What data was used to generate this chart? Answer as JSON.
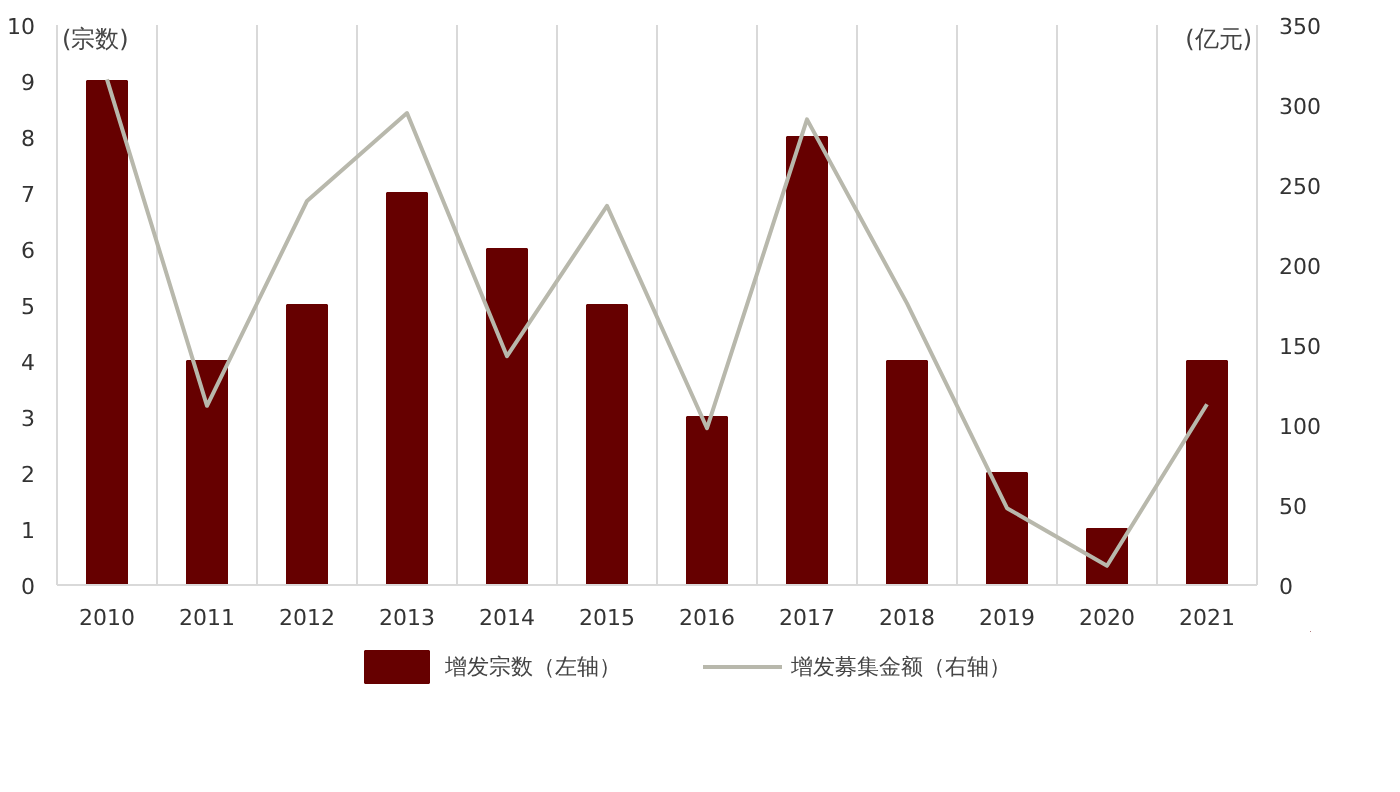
{
  "chart_data": {
    "type": "bar",
    "categories": [
      "2010",
      "2011",
      "2012",
      "2013",
      "2014",
      "2015",
      "2016",
      "2017",
      "2018",
      "2019",
      "2020",
      "2021"
    ],
    "series": [
      {
        "name": "增发宗数（左轴）",
        "color": "#660000",
        "values": [
          9,
          4,
          5,
          7,
          6,
          5,
          3,
          8,
          4,
          2,
          1,
          4
        ]
      },
      {
        "name": "增发募集金额（右轴）",
        "type": "line",
        "axis": "y2",
        "color": "#b8b8ac",
        "values": [
          316,
          112,
          240,
          295,
          143,
          237,
          98,
          291,
          176,
          48,
          12,
          113
        ]
      }
    ],
    "ylabel": "(宗数)",
    "y2label": "(亿元)",
    "ylim": [
      0,
      10
    ],
    "yticks": [
      0,
      1,
      2,
      3,
      4,
      5,
      6,
      7,
      8,
      9,
      10
    ],
    "y2lim": [
      0,
      350
    ],
    "y2ticks": [
      0,
      50,
      100,
      150,
      200,
      250,
      300,
      350
    ],
    "grid": "x",
    "legend": "bottom",
    "marker": "none",
    "line_style": "solid"
  }
}
